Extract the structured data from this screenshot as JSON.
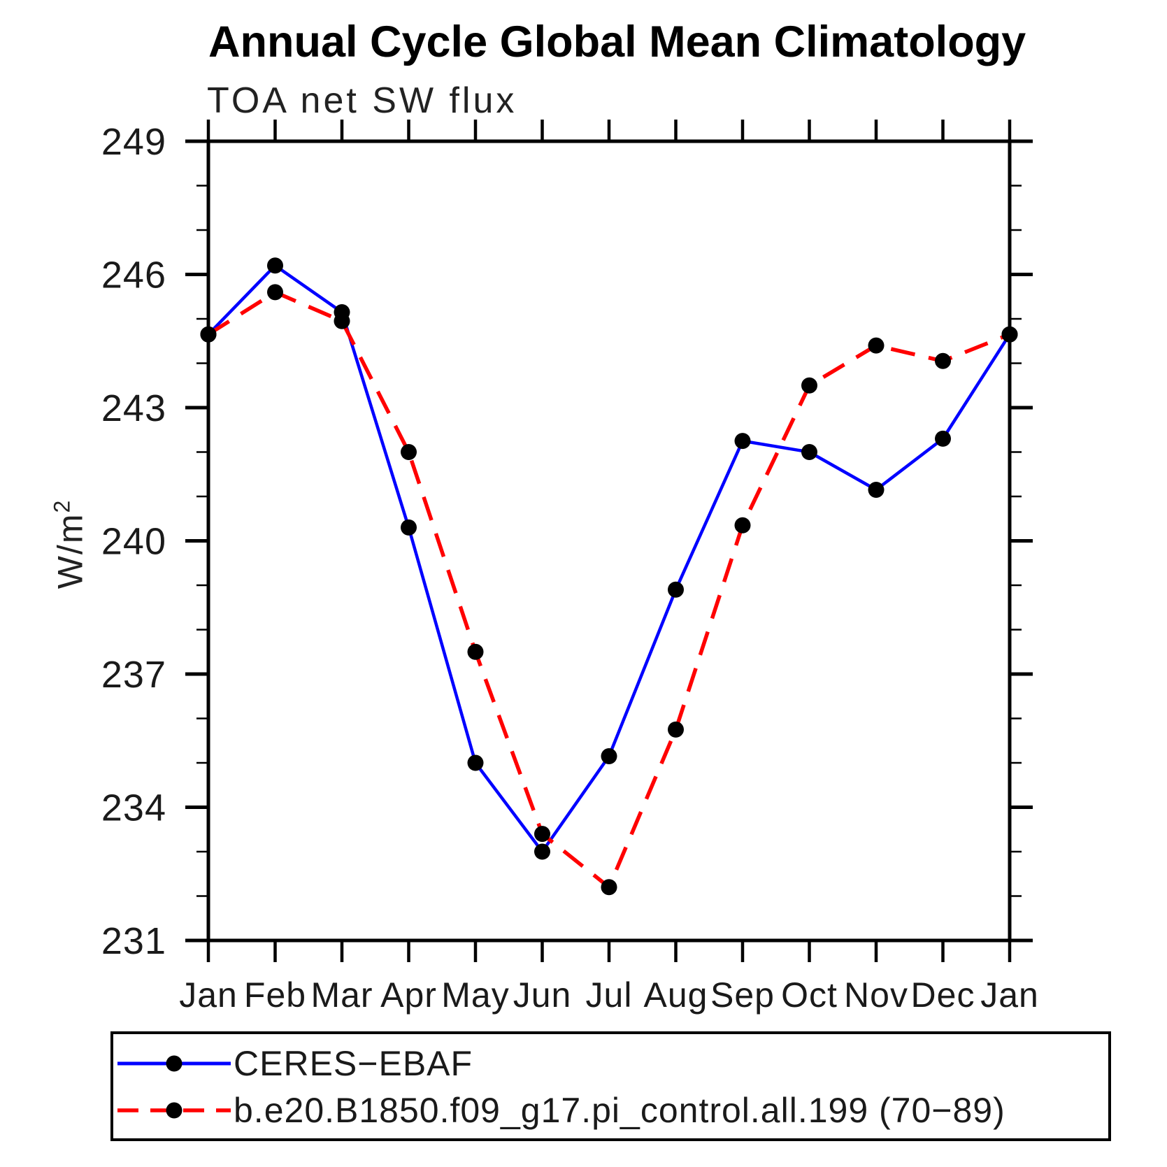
{
  "figure": {
    "title": "Annual Cycle Global Mean Climatology",
    "subtitle": "TOA net SW flux",
    "ylabel_base": "W/m",
    "ylabel_exponent": "2"
  },
  "chart_data": {
    "type": "line",
    "title": "Annual Cycle Global Mean Climatology",
    "subtitle": "TOA net SW flux",
    "xlabel": "",
    "ylabel": "W/m^2",
    "x_tick_labels": [
      "Jan",
      "Feb",
      "Mar",
      "Apr",
      "May",
      "Jun",
      "Jul",
      "Aug",
      "Sep",
      "Oct",
      "Nov",
      "Dec",
      "Jan"
    ],
    "ylim": [
      231,
      249
    ],
    "y_major_ticks": [
      249,
      246,
      243,
      240,
      237,
      234,
      231
    ],
    "y_minor_step": 1,
    "grid": false,
    "axis_color": "#000000",
    "legend_position": "bottom",
    "series": [
      {
        "name": "CERES−EBAF",
        "color": "#0000ff",
        "style": "solid",
        "marker": "circle",
        "marker_color": "#000000",
        "values": [
          244.65,
          246.2,
          245.15,
          240.3,
          235.0,
          233.0,
          235.15,
          238.9,
          242.25,
          242.0,
          241.15,
          242.3,
          244.65
        ]
      },
      {
        "name": "b.e20.B1850.f09_g17.pi_control.all.199 (70−89)",
        "color": "#ff0000",
        "style": "dashed",
        "marker": "circle",
        "marker_color": "#000000",
        "values": [
          244.65,
          245.6,
          244.95,
          242.0,
          237.5,
          233.4,
          232.2,
          235.75,
          240.35,
          243.5,
          244.4,
          244.05,
          244.65
        ]
      }
    ]
  }
}
